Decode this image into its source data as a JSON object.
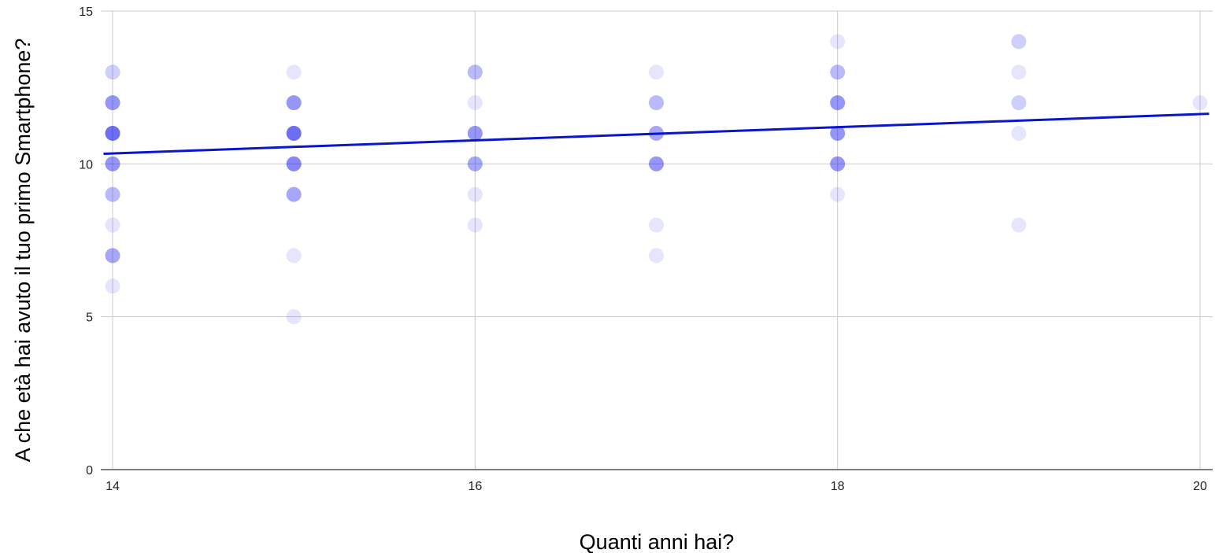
{
  "chart_data": {
    "type": "scatter",
    "title": "",
    "xlabel": "Quanti anni hai?",
    "ylabel": "A che età hai avuto il tuo primo Smartphone?",
    "xlim": [
      14,
      20
    ],
    "ylim": [
      0,
      15
    ],
    "x_ticks": [
      "14",
      "16",
      "18",
      "20"
    ],
    "y_ticks": [
      "0",
      "5",
      "10",
      "15"
    ],
    "grid": true,
    "legend": "none",
    "point_color": "#0000ee",
    "trendline_color": "#0a16cc",
    "points": [
      {
        "x": 14,
        "y": 13,
        "count": 2
      },
      {
        "x": 14,
        "y": 12,
        "count": 5
      },
      {
        "x": 14,
        "y": 11,
        "count": 8
      },
      {
        "x": 14,
        "y": 10,
        "count": 5
      },
      {
        "x": 14,
        "y": 9,
        "count": 3
      },
      {
        "x": 14,
        "y": 8,
        "count": 1
      },
      {
        "x": 14,
        "y": 7,
        "count": 4
      },
      {
        "x": 14,
        "y": 6,
        "count": 1
      },
      {
        "x": 15,
        "y": 13,
        "count": 1
      },
      {
        "x": 15,
        "y": 12,
        "count": 5
      },
      {
        "x": 15,
        "y": 11,
        "count": 8
      },
      {
        "x": 15,
        "y": 10,
        "count": 6
      },
      {
        "x": 15,
        "y": 9,
        "count": 4
      },
      {
        "x": 15,
        "y": 7,
        "count": 1
      },
      {
        "x": 15,
        "y": 5,
        "count": 1
      },
      {
        "x": 16,
        "y": 13,
        "count": 3
      },
      {
        "x": 16,
        "y": 12,
        "count": 1
      },
      {
        "x": 16,
        "y": 11,
        "count": 5
      },
      {
        "x": 16,
        "y": 10,
        "count": 4
      },
      {
        "x": 16,
        "y": 9,
        "count": 1
      },
      {
        "x": 16,
        "y": 8,
        "count": 1
      },
      {
        "x": 17,
        "y": 13,
        "count": 1
      },
      {
        "x": 17,
        "y": 12,
        "count": 3
      },
      {
        "x": 17,
        "y": 11,
        "count": 4
      },
      {
        "x": 17,
        "y": 10,
        "count": 5
      },
      {
        "x": 17,
        "y": 8,
        "count": 1
      },
      {
        "x": 17,
        "y": 7,
        "count": 1
      },
      {
        "x": 18,
        "y": 14,
        "count": 1
      },
      {
        "x": 18,
        "y": 13,
        "count": 3
      },
      {
        "x": 18,
        "y": 12,
        "count": 5
      },
      {
        "x": 18,
        "y": 11,
        "count": 5
      },
      {
        "x": 18,
        "y": 10,
        "count": 5
      },
      {
        "x": 18,
        "y": 9,
        "count": 1
      },
      {
        "x": 19,
        "y": 14,
        "count": 2
      },
      {
        "x": 19,
        "y": 13,
        "count": 1
      },
      {
        "x": 19,
        "y": 12,
        "count": 2
      },
      {
        "x": 19,
        "y": 11,
        "count": 1
      },
      {
        "x": 19,
        "y": 8,
        "count": 1
      },
      {
        "x": 20,
        "y": 12,
        "count": 1
      }
    ],
    "trendline": {
      "type": "linear",
      "start": {
        "x": 13.95,
        "y": 10.33
      },
      "end": {
        "x": 20.05,
        "y": 11.64
      }
    }
  }
}
